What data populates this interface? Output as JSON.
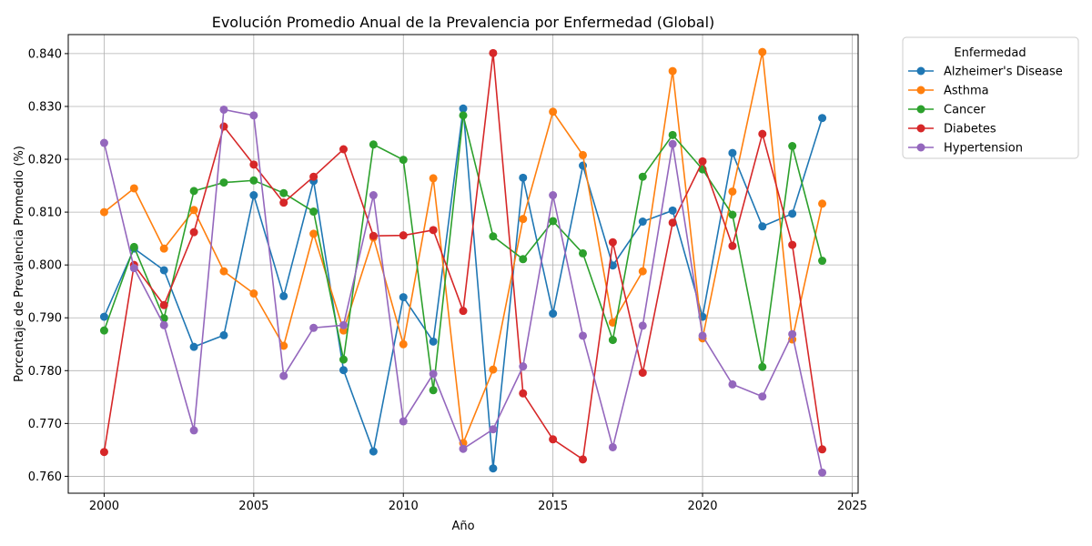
{
  "chart_data": {
    "type": "line",
    "title": "Evolución Promedio Anual de la Prevalencia por Enfermedad (Global)",
    "xlabel": "Año",
    "ylabel": "Porcentaje de Prevalencia Promedio (%)",
    "xlim": [
      1998.8,
      2025.2
    ],
    "ylim": [
      0.7568,
      0.8436
    ],
    "xticks": [
      2000,
      2005,
      2010,
      2015,
      2020,
      2025
    ],
    "xtick_labels": [
      "2000",
      "2005",
      "2010",
      "2015",
      "2020",
      "2025"
    ],
    "yticks": [
      0.76,
      0.77,
      0.78,
      0.79,
      0.8,
      0.81,
      0.82,
      0.83,
      0.84
    ],
    "ytick_labels": [
      "0.760",
      "0.770",
      "0.780",
      "0.790",
      "0.800",
      "0.810",
      "0.820",
      "0.830",
      "0.840"
    ],
    "grid": true,
    "legend": {
      "title": "Enfermedad",
      "placement": "outside-top-right"
    },
    "x": [
      2000,
      2001,
      2002,
      2003,
      2004,
      2005,
      2006,
      2007,
      2008,
      2009,
      2010,
      2011,
      2012,
      2013,
      2014,
      2015,
      2016,
      2017,
      2018,
      2019,
      2020,
      2021,
      2022,
      2023,
      2024
    ],
    "series": [
      {
        "name": "Alzheimer's Disease",
        "color": "#1f77b4",
        "values": [
          0.7902,
          0.8031,
          0.799,
          0.7845,
          0.7867,
          0.8132,
          0.7941,
          0.8159,
          0.7801,
          0.7647,
          0.7939,
          0.7855,
          0.8296,
          0.7615,
          0.8165,
          0.7908,
          0.8188,
          0.7999,
          0.8082,
          0.8103,
          0.7902,
          0.8212,
          0.8073,
          0.8097,
          0.8278
        ]
      },
      {
        "name": "Asthma",
        "color": "#ff7f0e",
        "values": [
          0.81,
          0.8145,
          0.8031,
          0.8104,
          0.7988,
          0.7946,
          0.7847,
          0.8059,
          0.7876,
          0.8052,
          0.785,
          0.8164,
          0.7663,
          0.7802,
          0.8087,
          0.829,
          0.8208,
          0.7891,
          0.7988,
          0.8367,
          0.7861,
          0.8139,
          0.8403,
          0.7859,
          0.8116
        ]
      },
      {
        "name": "Cancer",
        "color": "#2ca02c",
        "values": [
          0.7876,
          0.8034,
          0.7899,
          0.814,
          0.8156,
          0.816,
          0.8136,
          0.8101,
          0.7821,
          0.8228,
          0.8199,
          0.7763,
          0.8283,
          0.8054,
          0.8011,
          0.8083,
          0.8022,
          0.7858,
          0.8167,
          0.8246,
          0.8181,
          0.8095,
          0.7807,
          0.8225,
          0.8008
        ]
      },
      {
        "name": "Diabetes",
        "color": "#d62728",
        "values": [
          0.7646,
          0.8,
          0.7924,
          0.8062,
          0.8262,
          0.819,
          0.8118,
          0.8167,
          0.8219,
          0.8055,
          0.8056,
          0.8066,
          0.7913,
          0.8401,
          0.7757,
          0.767,
          0.7632,
          0.8043,
          0.7796,
          0.808,
          0.8196,
          0.8036,
          0.8248,
          0.8038,
          0.7651
        ]
      },
      {
        "name": "Hypertension",
        "color": "#9467bd",
        "values": [
          0.8231,
          0.7994,
          0.7886,
          0.7687,
          0.8294,
          0.8283,
          0.779,
          0.7881,
          0.7886,
          0.8132,
          0.7704,
          0.7794,
          0.7652,
          0.7689,
          0.7808,
          0.8132,
          0.7866,
          0.7655,
          0.7885,
          0.8229,
          0.7866,
          0.7774,
          0.7751,
          0.7869,
          0.7607
        ]
      }
    ]
  }
}
